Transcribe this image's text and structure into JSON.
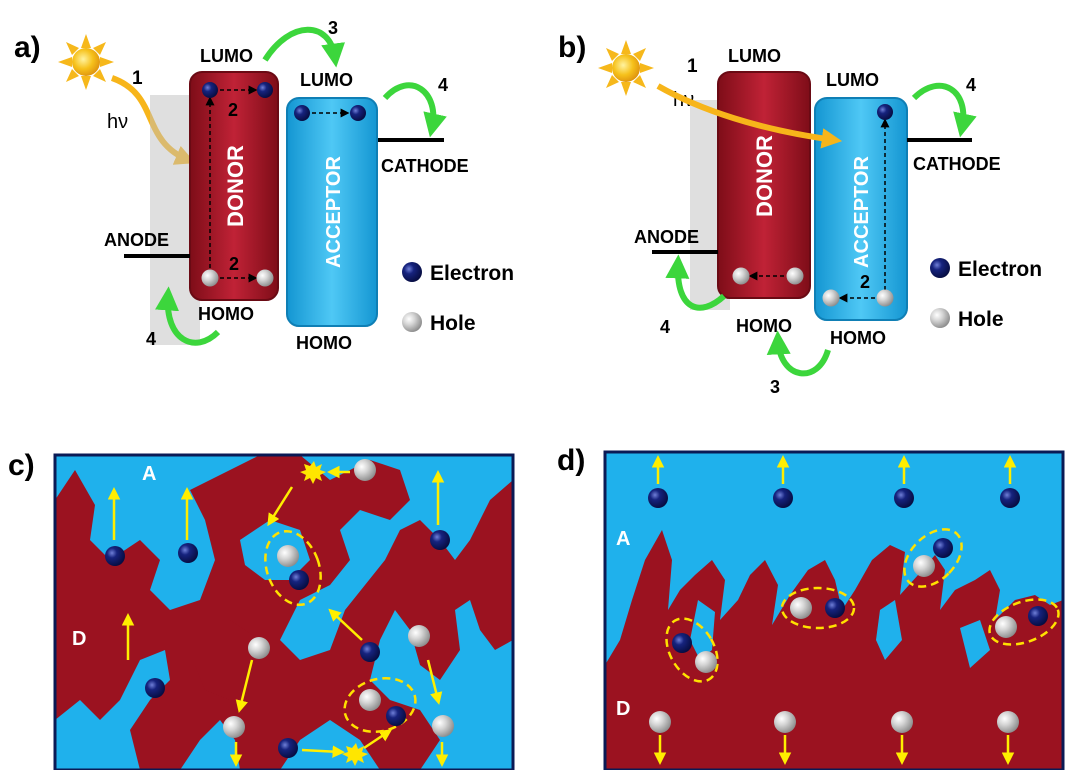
{
  "colors": {
    "donor": "#9b1220",
    "acceptor": "#1fb1ec",
    "electron": "#0b1a6b",
    "hole": "#cfcfcf",
    "arrow_green": "#3cd63c",
    "arrow_orange": "#f7b51a",
    "arrow_yellow": "#ffee00",
    "ellipse": "#ffe100",
    "frame": "#0a1a55"
  },
  "panel_a": {
    "letter": "a)",
    "lumo_donor": "LUMO",
    "lumo_acceptor": "LUMO",
    "homo_donor": "HOMO",
    "homo_acceptor": "HOMO",
    "donor": "DONOR",
    "acceptor": "ACCEPTOR",
    "anode": "ANODE",
    "cathode": "CATHODE",
    "hv": "hν",
    "step1": "1",
    "step2a": "2",
    "step2b": "2",
    "step3": "3",
    "step4a": "4",
    "step4b": "4",
    "legend_electron": "Electron",
    "legend_hole": "Hole"
  },
  "panel_b": {
    "letter": "b)",
    "lumo_donor": "LUMO",
    "lumo_acceptor": "LUMO",
    "homo_donor": "HOMO",
    "homo_acceptor": "HOMO",
    "donor": "DONOR",
    "acceptor": "ACCEPTOR",
    "anode": "ANODE",
    "cathode": "CATHODE",
    "hv": "hν",
    "step1": "1",
    "step2": "2",
    "step3": "3",
    "step4a": "4",
    "step4b": "4",
    "legend_electron": "Electron",
    "legend_hole": "Hole"
  },
  "panel_c": {
    "letter": "c)",
    "label_a": "A",
    "label_d": "D"
  },
  "panel_d": {
    "letter": "d)",
    "label_a": "A",
    "label_d": "D"
  },
  "icons": {
    "sun": "sun-icon",
    "electron": "electron-icon",
    "hole": "hole-icon"
  }
}
